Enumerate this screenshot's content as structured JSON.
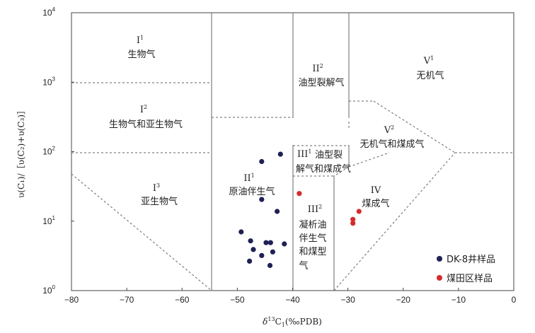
{
  "chart_data": {
    "type": "scatter",
    "xlabel": {
      "pre": "δ",
      "sup": "13",
      "mid": "C",
      "sub": "1",
      "post": "(‰PDB)"
    },
    "ylabel": "υ(C₁)/［υ(C₂)+υ(C₃)］",
    "xlim": [
      -80,
      0
    ],
    "ylim": [
      1,
      10000
    ],
    "yscale": "log",
    "x_ticks": [
      "−80",
      "−70",
      "−60",
      "−50",
      "−40",
      "−30",
      "−20",
      "−10",
      "0"
    ],
    "y_ticks": [
      {
        "base": "10",
        "exp": "0"
      },
      {
        "base": "10",
        "exp": "1"
      },
      {
        "base": "10",
        "exp": "2"
      },
      {
        "base": "10",
        "exp": "3"
      },
      {
        "base": "10",
        "exp": "4"
      }
    ],
    "zones": [
      {
        "roman": "I",
        "sup": "1",
        "name": "生物气"
      },
      {
        "roman": "I",
        "sup": "2",
        "name": "生物气和亚生物气"
      },
      {
        "roman": "I",
        "sup": "3",
        "name": "亚生物气"
      },
      {
        "roman": "II",
        "sup": "1",
        "name": "原油伴生气"
      },
      {
        "roman": "II",
        "sup": "2",
        "name": "油型裂解气"
      },
      {
        "roman": "III",
        "sup": "1",
        "name_lines": [
          "油型裂",
          "解气和煤成气"
        ]
      },
      {
        "roman": "III",
        "sup": "2",
        "name_lines": [
          "凝析油",
          "伴生气",
          "和煤型",
          "气"
        ]
      },
      {
        "roman": "IV",
        "sup": "",
        "name": "煤成气"
      },
      {
        "roman": "V",
        "sup": "1",
        "name": "无机气"
      },
      {
        "roman": "V",
        "sup": "2",
        "name": "无机气和煤成气"
      }
    ],
    "series": [
      {
        "name": "DK-8井样品",
        "color": "#1f2054",
        "points": [
          [
            -42.2,
            92
          ],
          [
            -45.6,
            72
          ],
          [
            -45.6,
            20.5
          ],
          [
            -42.8,
            13.8
          ],
          [
            -49.3,
            7.0
          ],
          [
            -47.6,
            5.2
          ],
          [
            -44.8,
            4.9
          ],
          [
            -44.0,
            4.9
          ],
          [
            -41.5,
            4.7
          ],
          [
            -47.1,
            3.9
          ],
          [
            -43.6,
            3.6
          ],
          [
            -45.6,
            3.2
          ],
          [
            -47.8,
            2.65
          ],
          [
            -44.1,
            2.3
          ]
        ]
      },
      {
        "name": "煤田区样品",
        "color": "#d42c2c",
        "points": [
          [
            -38.8,
            25
          ],
          [
            -29.1,
            10.6
          ],
          [
            -29.1,
            9.3
          ],
          [
            -28.0,
            13.8
          ]
        ]
      }
    ],
    "legend_position": "bottom-right"
  }
}
